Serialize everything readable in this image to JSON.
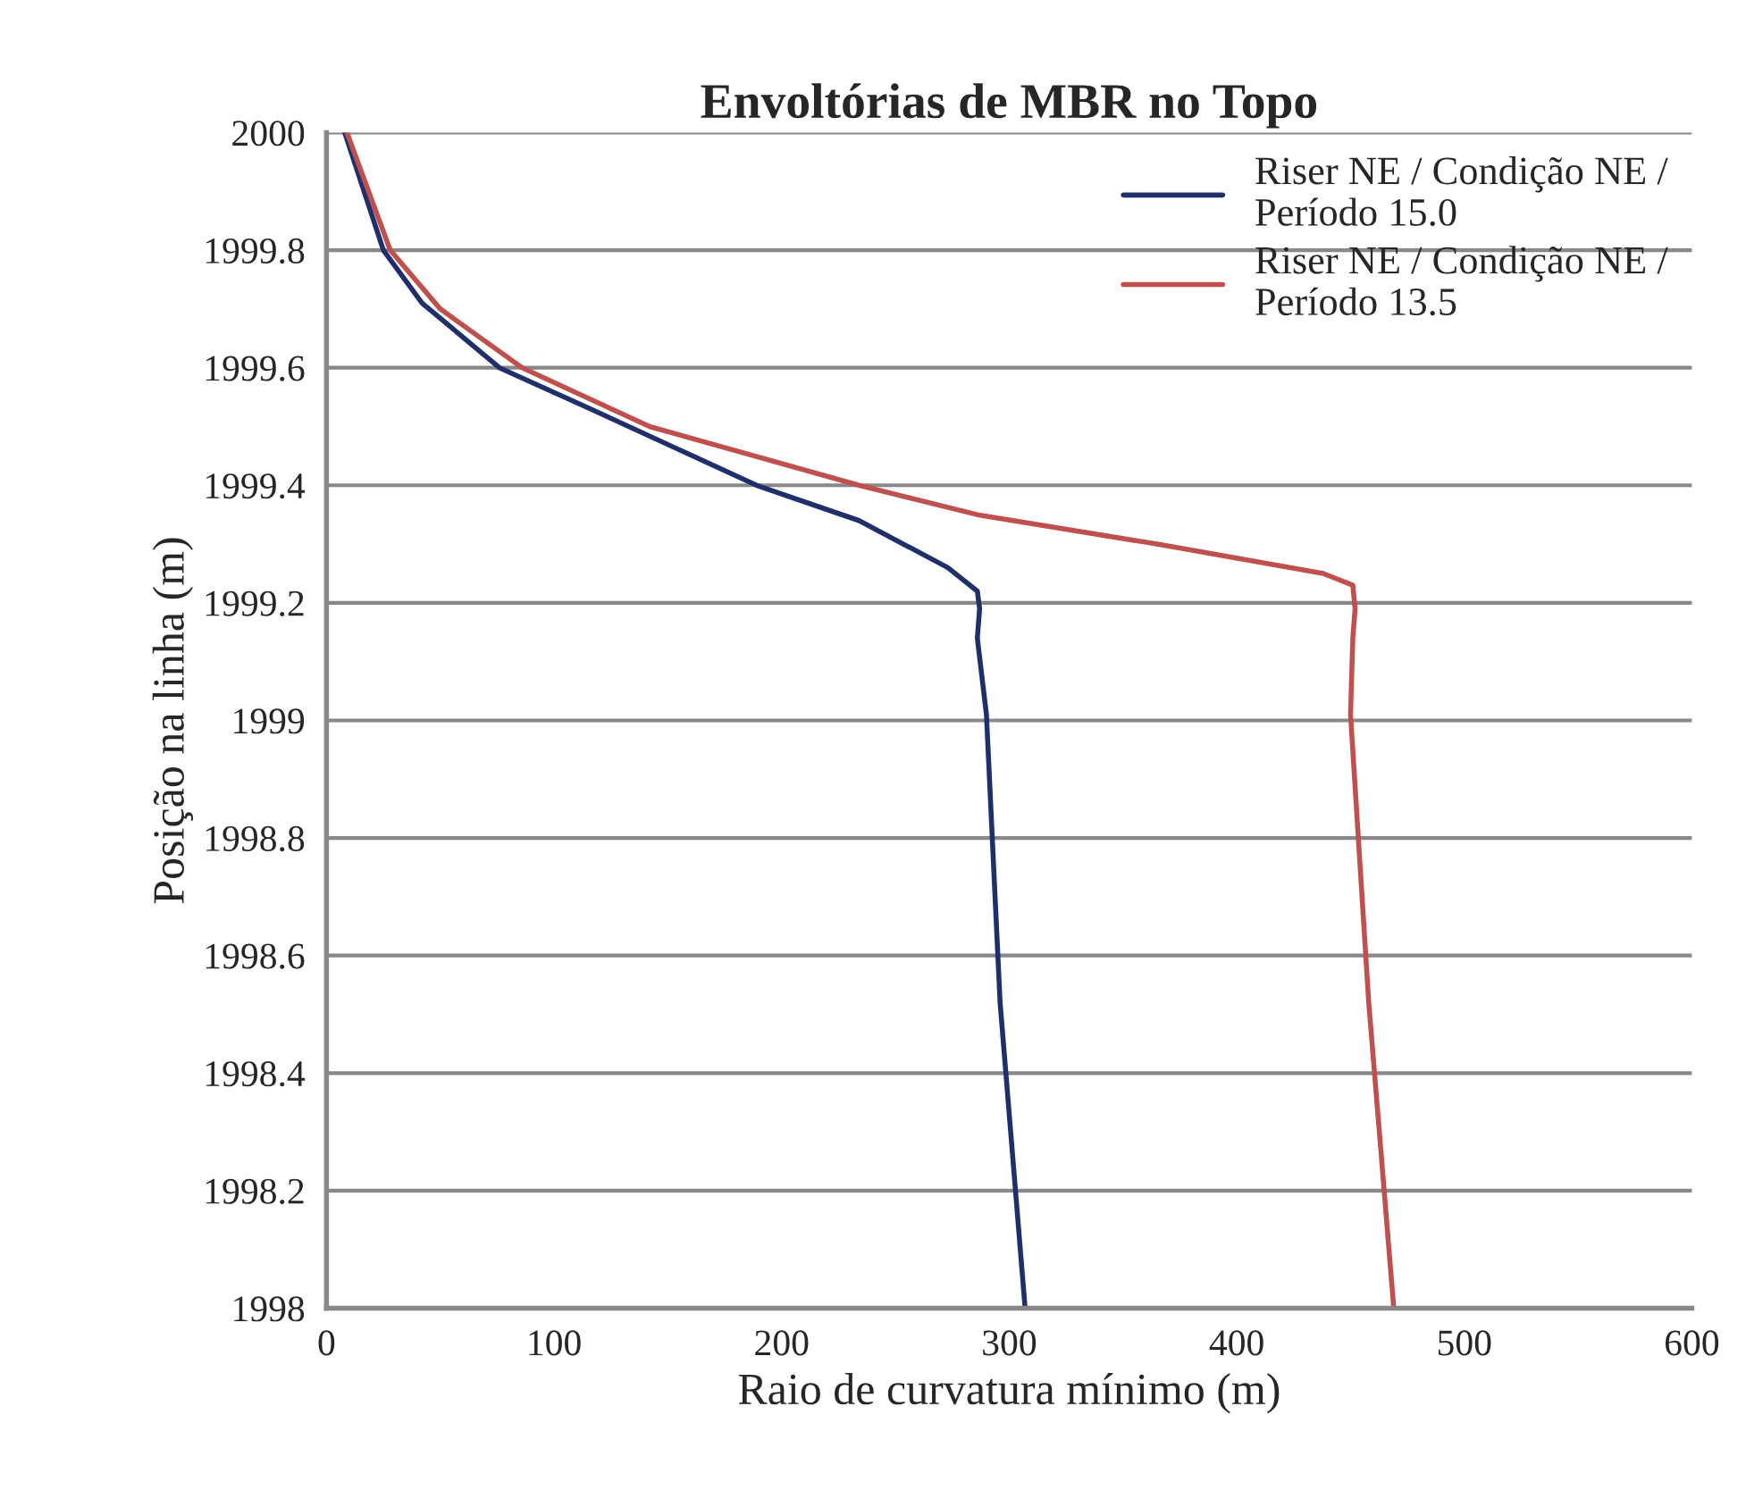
{
  "chart_data": {
    "type": "line",
    "title": "Envoltórias de MBR no Topo",
    "xlabel": "Raio de curvatura mínimo (m)",
    "ylabel": "Posição na linha (m)",
    "xlim": [
      0,
      600
    ],
    "xticks": [
      0,
      100,
      200,
      300,
      400,
      500,
      600
    ],
    "ylim": [
      1998,
      2000
    ],
    "yticks": [
      {
        "value": 1998,
        "label": "1998"
      },
      {
        "value": 1998.2,
        "label": "1998.2"
      },
      {
        "value": 1998.4,
        "label": "1998.4"
      },
      {
        "value": 1998.6,
        "label": "1998.6"
      },
      {
        "value": 1998.8,
        "label": "1998.8"
      },
      {
        "value": 1999,
        "label": "1999"
      },
      {
        "value": 1999.2,
        "label": "1999.2"
      },
      {
        "value": 1999.4,
        "label": "1999.4"
      },
      {
        "value": 1999.6,
        "label": "1999.6"
      },
      {
        "value": 1999.8,
        "label": "1999.8"
      },
      {
        "value": 2000,
        "label": "2000"
      }
    ],
    "grid": "y",
    "legend": "top right",
    "marker": "none",
    "line_style": "solid",
    "series": [
      {
        "name": "Riser NE / Condição NE /\nPeríodo 15.0",
        "color": "#1f2f6b",
        "x": [
          8,
          25,
          42,
          76,
          116,
          189,
          234,
          273,
          286,
          287,
          286,
          290,
          296,
          307
        ],
        "values": [
          2000,
          1999.8,
          1999.71,
          1999.6,
          1999.53,
          1999.4,
          1999.34,
          1999.26,
          1999.22,
          1999.19,
          1999.14,
          1999.01,
          1998.52,
          1998
        ]
      },
      {
        "name": "Riser NE / Condição NE /\nPeríodo 13.5",
        "color": "#c0504d",
        "x": [
          9,
          28,
          50,
          86,
          142,
          234,
          286,
          365,
          438,
          451,
          452,
          451,
          450,
          458,
          469
        ],
        "values": [
          2000,
          1999.8,
          1999.7,
          1999.6,
          1999.5,
          1999.4,
          1999.35,
          1999.3,
          1999.25,
          1999.23,
          1999.19,
          1999.14,
          1999.01,
          1998.52,
          1998
        ]
      }
    ]
  }
}
